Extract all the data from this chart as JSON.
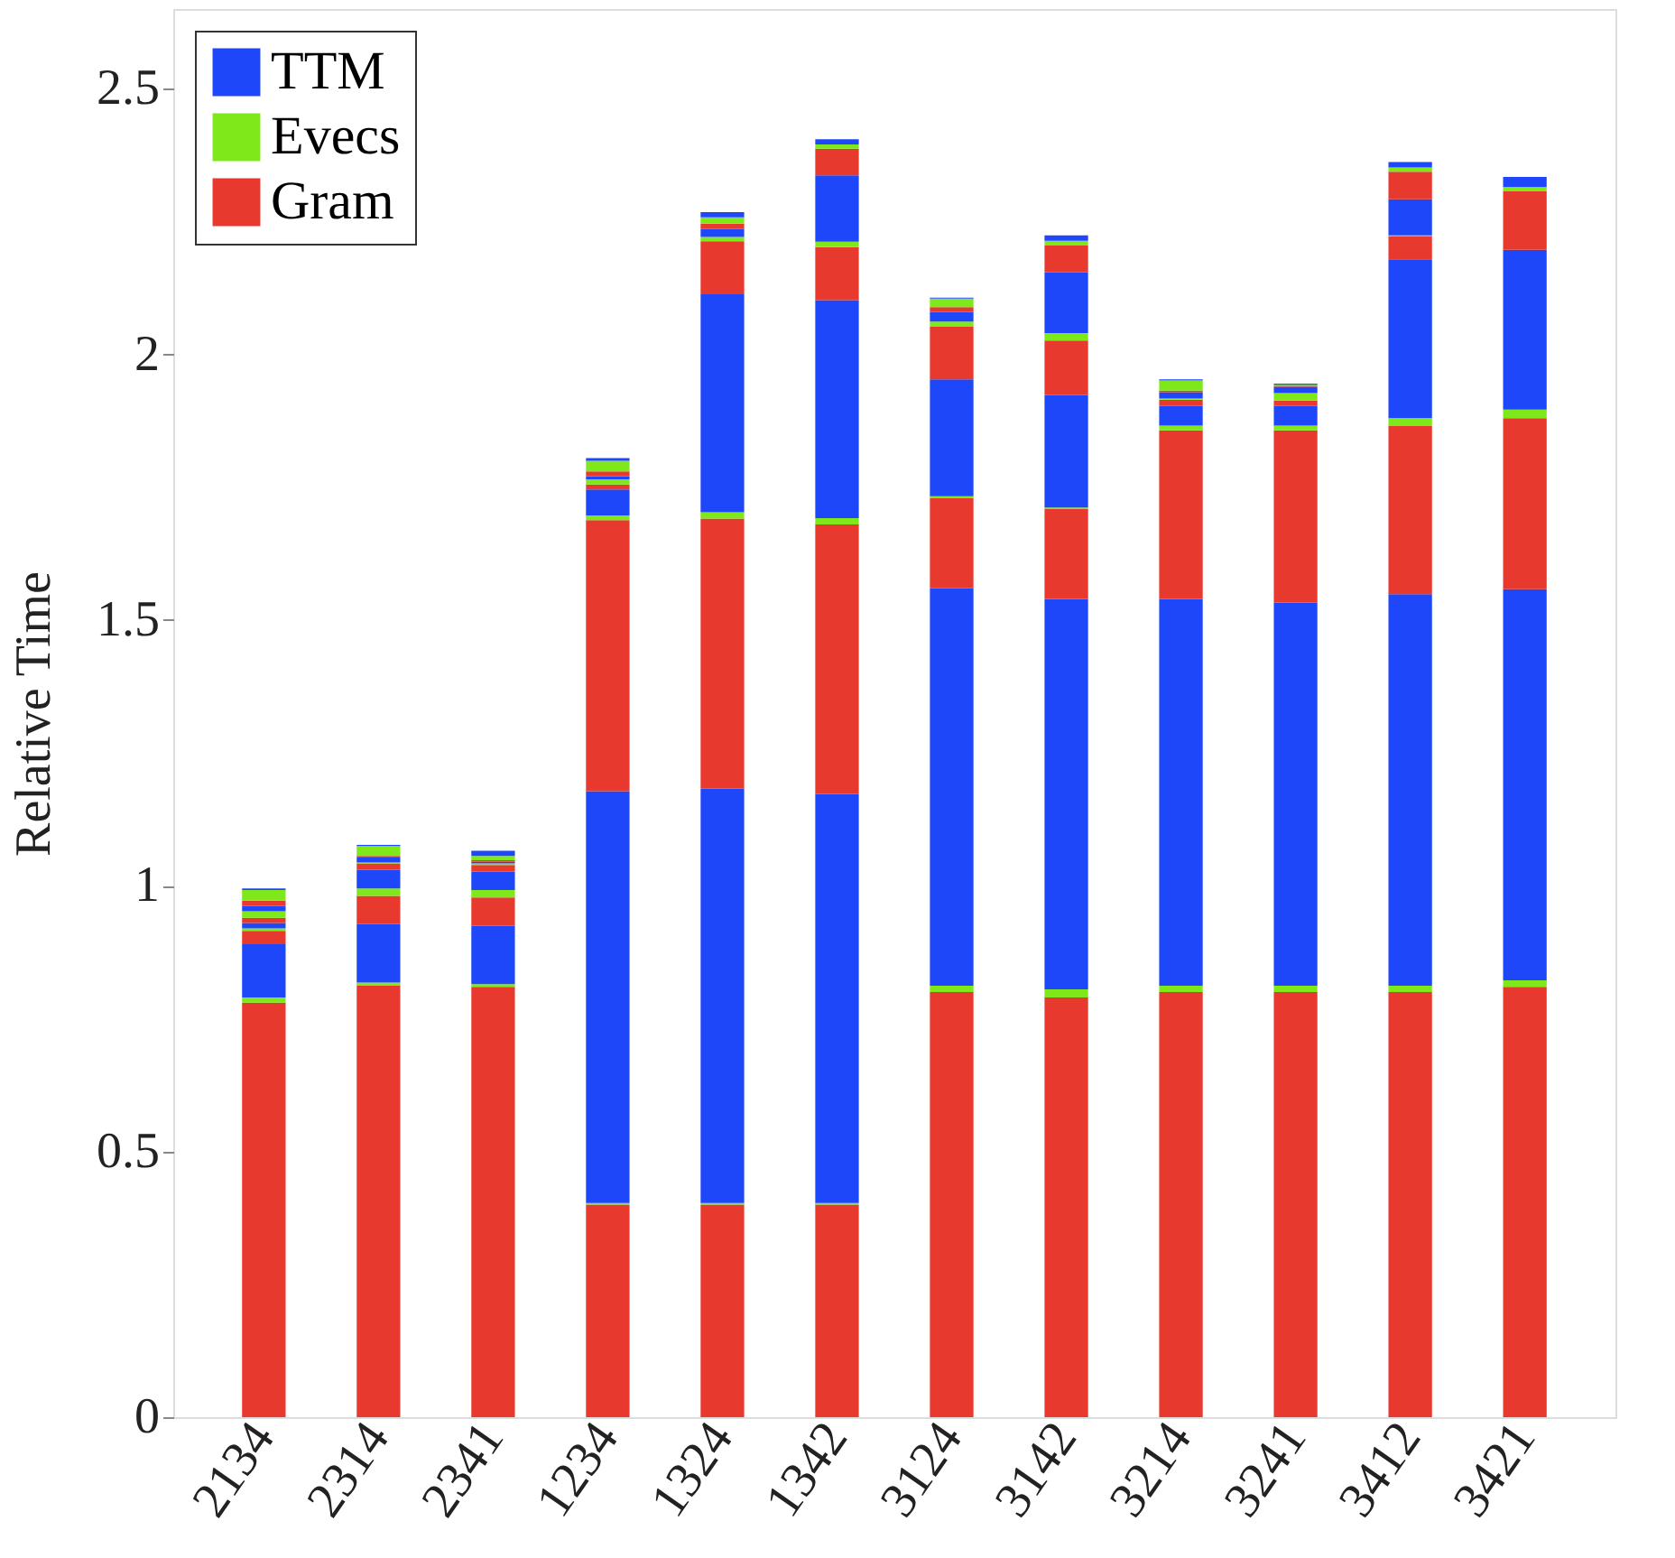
{
  "chart_data": {
    "type": "bar",
    "stacked": true,
    "ylabel": "Relative Time",
    "categories": [
      "2134",
      "2314",
      "2341",
      "1234",
      "1324",
      "1342",
      "3124",
      "3142",
      "3214",
      "3241",
      "3412",
      "3421"
    ],
    "series": [
      {
        "name": "Gram",
        "color": "#e8392f",
        "values": [
          0.78,
          0.813,
          0.81,
          0.4,
          0.4,
          0.4,
          0.8,
          0.79,
          0.8,
          0.8,
          0.8,
          0.81
        ]
      },
      {
        "name": "Evecs",
        "color": "#7ee81a",
        "values": [
          0.01,
          0.005,
          0.005,
          0.003,
          0.003,
          0.003,
          0.012,
          0.015,
          0.012,
          0.012,
          0.012,
          0.012
        ]
      },
      {
        "name": "TTM",
        "color": "#1f47fa",
        "values": [
          0.1,
          0.11,
          0.11,
          0.775,
          0.78,
          0.77,
          0.748,
          0.735,
          0.728,
          0.721,
          0.737,
          0.736
        ]
      },
      {
        "color": "#e8392f",
        "values": [
          0.025,
          0.053,
          0.053,
          0.51,
          0.508,
          0.507,
          0.17,
          0.169,
          0.317,
          0.324,
          0.317,
          0.322
        ]
      },
      {
        "color": "#7ee81a",
        "values": [
          0.005,
          0.014,
          0.014,
          0.009,
          0.012,
          0.012,
          0.003,
          0.003,
          0.009,
          0.009,
          0.014,
          0.016
        ]
      },
      {
        "color": "#1f47fa",
        "values": [
          0.01,
          0.035,
          0.035,
          0.049,
          0.41,
          0.41,
          0.22,
          0.212,
          0.037,
          0.037,
          0.299,
          0.301
        ]
      },
      {
        "color": "#e8392f",
        "values": [
          0.01,
          0.012,
          0.012,
          0.009,
          0.1,
          0.1,
          0.1,
          0.102,
          0.012,
          0.01,
          0.043,
          0.11
        ]
      },
      {
        "color": "#7ee81a",
        "values": [
          0.012,
          0.002,
          0.003,
          0.01,
          0.008,
          0.01,
          0.009,
          0.014,
          0.002,
          0.014,
          0.002,
          0.008
        ]
      },
      {
        "color": "#1f47fa",
        "values": [
          0.01,
          0.009,
          0.003,
          0.006,
          0.015,
          0.125,
          0.018,
          0.115,
          0.012,
          0.012,
          0.068,
          0.019
        ]
      },
      {
        "color": "#e8392f",
        "values": [
          0.01,
          0.003,
          0.003,
          0.009,
          0.01,
          0.05,
          0.009,
          0.05,
          0.003,
          0.002,
          0.052,
          null
        ]
      },
      {
        "color": "#7ee81a",
        "values": [
          0.02,
          0.019,
          0.008,
          0.02,
          0.012,
          0.008,
          0.016,
          0.009,
          0.019,
          0.002,
          0.008,
          null
        ]
      },
      {
        "color": "#1f47fa",
        "values": [
          0.003,
          0.002,
          0.01,
          0.005,
          0.01,
          0.01,
          0.002,
          0.01,
          0.002,
          0.002,
          0.01,
          null
        ]
      }
    ],
    "ylim": [
      0,
      2.65
    ],
    "yticks": [
      0,
      0.5,
      1,
      1.5,
      2,
      2.5
    ],
    "grid": false,
    "legend": "top left"
  }
}
